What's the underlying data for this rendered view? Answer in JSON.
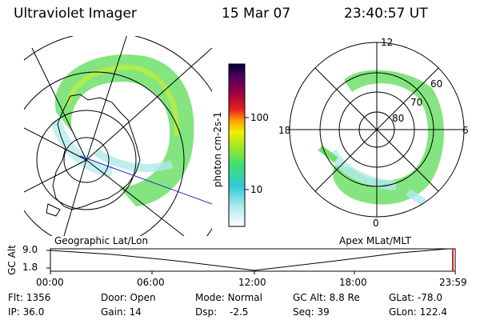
{
  "header": {
    "title": "Ultraviolet Imager",
    "date": "15 Mar 07",
    "time": "23:40:57 UT"
  },
  "colorbar": {
    "unit": "photon cm-2s-1",
    "ticks": [
      "100",
      "10"
    ]
  },
  "map_labels": {
    "left": "Geographic Lat/Lon",
    "right": "Apex MLat/MLT"
  },
  "polar": {
    "mlt": {
      "top": "12",
      "left": "18",
      "right": "6",
      "bottom": "0"
    },
    "lat": [
      "60",
      "70",
      "80"
    ]
  },
  "altitude": {
    "axis_label": "GC Alt",
    "ticks": [
      "9.0",
      "1.8"
    ],
    "times": [
      "00:00",
      "06:00",
      "12:00",
      "18:00",
      "23:59"
    ]
  },
  "status": [
    {
      "label": "Flt:",
      "value": "1356"
    },
    {
      "label": "IP:",
      "value": "36.0"
    },
    {
      "label": "Door:",
      "value": "Open"
    },
    {
      "label": "Gain:",
      "value": "14"
    },
    {
      "label": "Mode:",
      "value": "Normal"
    },
    {
      "label": "Dsp:",
      "value": "-2.5"
    },
    {
      "label": "GC Alt:",
      "value": "8.8 Re"
    },
    {
      "label": "Seq:",
      "value": "39"
    },
    {
      "label": "GLat:",
      "value": "-78.0"
    },
    {
      "label": "GLon:",
      "value": "122.4"
    }
  ]
}
